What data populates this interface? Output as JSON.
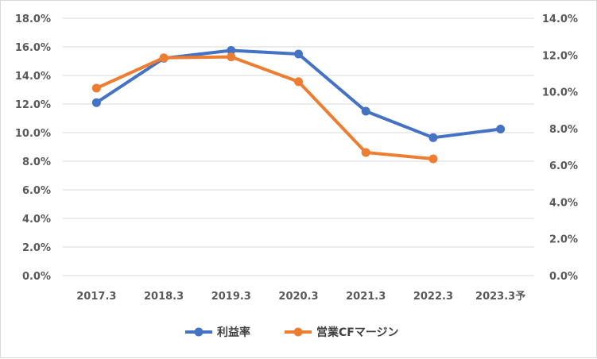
{
  "chart_data": {
    "type": "line",
    "categories": [
      "2017.3",
      "2018.3",
      "2019.3",
      "2020.3",
      "2021.3",
      "2022.3",
      "2023.3予"
    ],
    "y_left": {
      "ticks": [
        "0.0%",
        "2.0%",
        "4.0%",
        "6.0%",
        "8.0%",
        "10.0%",
        "12.0%",
        "14.0%",
        "16.0%",
        "18.0%"
      ],
      "range": [
        0,
        18
      ]
    },
    "y_right": {
      "ticks": [
        "0.0%",
        "2.0%",
        "4.0%",
        "6.0%",
        "8.0%",
        "10.0%",
        "12.0%",
        "14.0%"
      ],
      "range": [
        0,
        14
      ]
    },
    "series": [
      {
        "name": "利益率",
        "axis": "left",
        "color": "#4472c4",
        "values": [
          12.1,
          15.2,
          15.75,
          15.5,
          11.5,
          9.65,
          10.25
        ]
      },
      {
        "name": "営業CFマージン",
        "axis": "right",
        "color": "#ed7d31",
        "values": [
          10.2,
          11.85,
          11.9,
          10.55,
          6.7,
          6.35,
          null
        ]
      }
    ],
    "grid": true,
    "legend_position": "bottom"
  }
}
